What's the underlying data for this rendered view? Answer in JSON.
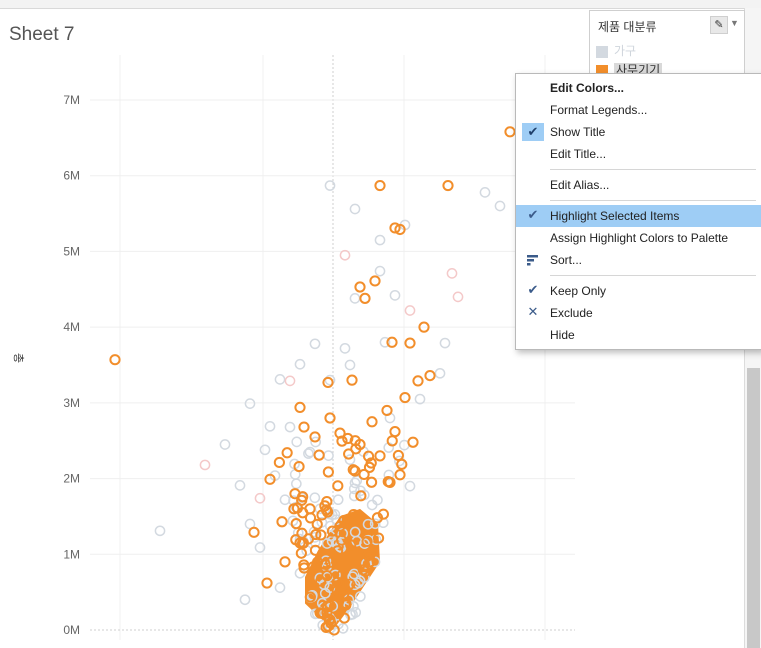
{
  "sheet": {
    "title": "Sheet 7",
    "y_axis_label": "총"
  },
  "legend": {
    "title": "제품 대분류",
    "items": [
      {
        "label": "가구",
        "color": "#d3d9e0"
      },
      {
        "label": "사무기기",
        "color": "#f28e2b"
      }
    ]
  },
  "context_menu": {
    "items": [
      {
        "label": "Edit Colors...",
        "bold": true,
        "icon": ""
      },
      {
        "label": "Format Legends...",
        "icon": ""
      },
      {
        "label": "Show Title",
        "icon": "check-icon",
        "checked": true
      },
      {
        "label": "Edit Title...",
        "icon": ""
      },
      {
        "label": "Edit Alias...",
        "icon": ""
      },
      {
        "label": "Highlight Selected Items",
        "icon": "check-icon",
        "highlighted": true
      },
      {
        "label": "Assign Highlight Colors to Palette",
        "icon": ""
      },
      {
        "label": "Sort...",
        "icon": "sort-icon"
      },
      {
        "label": "Keep Only",
        "icon": "check-icon"
      },
      {
        "label": "Exclude",
        "icon": "x-icon"
      },
      {
        "label": "Hide",
        "icon": ""
      }
    ]
  },
  "chart_data": {
    "type": "scatter",
    "title": "Sheet 7",
    "xlabel": "",
    "ylabel": "총",
    "ylim": [
      0,
      7500000
    ],
    "y_ticks": [
      "0M",
      "1M",
      "2M",
      "3M",
      "4M",
      "5M",
      "6M",
      "7M"
    ],
    "grid": true,
    "series": [
      {
        "name": "가구",
        "color": "#d3d9e0",
        "points": [
          [
            330,
            5870000
          ],
          [
            355,
            5560000
          ],
          [
            405,
            5350000
          ],
          [
            485,
            5780000
          ],
          [
            500,
            5600000
          ],
          [
            380,
            5150000
          ],
          [
            380,
            4740000
          ],
          [
            355,
            4380000
          ],
          [
            395,
            4420000
          ],
          [
            345,
            3720000
          ],
          [
            315,
            3780000
          ],
          [
            280,
            3310000
          ],
          [
            300,
            3510000
          ],
          [
            330,
            3300000
          ],
          [
            445,
            3790000
          ],
          [
            440,
            3390000
          ],
          [
            250,
            2990000
          ],
          [
            270,
            2690000
          ],
          [
            225,
            2450000
          ],
          [
            265,
            2380000
          ],
          [
            290,
            2680000
          ],
          [
            240,
            1910000
          ],
          [
            275,
            2040000
          ],
          [
            285,
            1720000
          ],
          [
            250,
            1400000
          ],
          [
            260,
            1090000
          ],
          [
            245,
            400000
          ],
          [
            160,
            1310000
          ],
          [
            300,
            1200000
          ],
          [
            320,
            1600000
          ],
          [
            350,
            2250000
          ],
          [
            390,
            2800000
          ],
          [
            420,
            3050000
          ],
          [
            340,
            1100000
          ],
          [
            375,
            900000
          ],
          [
            300,
            750000
          ],
          [
            280,
            560000
          ],
          [
            360,
            650000
          ],
          [
            410,
            1900000
          ],
          [
            310,
            2350000
          ],
          [
            350,
            3500000
          ],
          [
            385,
            3800000
          ]
        ]
      },
      {
        "name": "사무기기",
        "color": "#f28e2b",
        "points": [
          [
            510,
            6580000
          ],
          [
            380,
            5870000
          ],
          [
            448,
            5870000
          ],
          [
            400,
            5290000
          ],
          [
            395,
            5310000
          ],
          [
            360,
            4530000
          ],
          [
            375,
            4610000
          ],
          [
            365,
            4380000
          ],
          [
            424,
            4000000
          ],
          [
            115,
            3570000
          ],
          [
            392,
            3800000
          ],
          [
            410,
            3790000
          ],
          [
            430,
            3360000
          ],
          [
            418,
            3290000
          ],
          [
            405,
            3070000
          ],
          [
            387,
            2900000
          ],
          [
            328,
            3270000
          ],
          [
            352,
            3300000
          ],
          [
            300,
            2940000
          ],
          [
            304,
            2680000
          ],
          [
            315,
            2550000
          ],
          [
            330,
            2800000
          ],
          [
            340,
            2600000
          ],
          [
            360,
            2450000
          ],
          [
            372,
            2750000
          ],
          [
            395,
            2620000
          ],
          [
            413,
            2480000
          ],
          [
            270,
            1990000
          ],
          [
            282,
            1430000
          ],
          [
            254,
            1290000
          ],
          [
            295,
            1800000
          ],
          [
            267,
            620000
          ],
          [
            300,
            1150000
          ],
          [
            310,
            1600000
          ],
          [
            322,
            1520000
          ],
          [
            285,
            900000
          ],
          [
            380,
            2300000
          ],
          [
            355,
            2100000
          ],
          [
            390,
            1950000
          ],
          [
            400,
            2050000
          ]
        ]
      }
    ]
  }
}
